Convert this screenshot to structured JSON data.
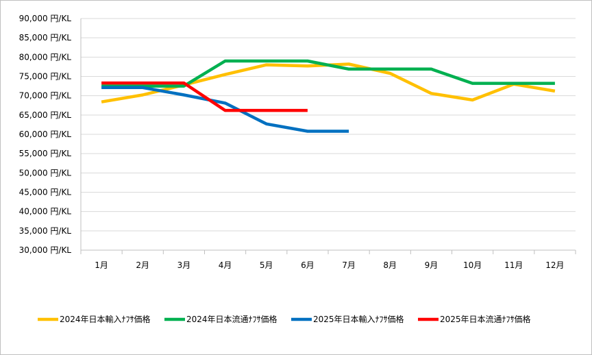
{
  "chart_data": {
    "type": "line",
    "title": "",
    "xlabel": "",
    "ylabel": "",
    "categories": [
      "1月",
      "2月",
      "3月",
      "4月",
      "5月",
      "6月",
      "7月",
      "8月",
      "9月",
      "10月",
      "11月",
      "12月"
    ],
    "ylim": [
      30000,
      90000
    ],
    "y_ticks": [
      {
        "value": 90000,
        "label": "90,000 円/KL"
      },
      {
        "value": 85000,
        "label": "85,000 円/KL"
      },
      {
        "value": 80000,
        "label": "80,000 円/KL"
      },
      {
        "value": 75000,
        "label": "75,000 円/KL"
      },
      {
        "value": 70000,
        "label": "70,000 円/KL"
      },
      {
        "value": 65000,
        "label": "65,000 円/KL"
      },
      {
        "value": 60000,
        "label": "60,000 円/KL"
      },
      {
        "value": 55000,
        "label": "55,000 円/KL"
      },
      {
        "value": 50000,
        "label": "50,000 円/KL"
      },
      {
        "value": 45000,
        "label": "45,000 円/KL"
      },
      {
        "value": 40000,
        "label": "40,000 円/KL"
      },
      {
        "value": 35000,
        "label": "35,000 円/KL"
      },
      {
        "value": 30000,
        "label": "30,000 円/KL"
      }
    ],
    "grid": true,
    "legend_position": "bottom",
    "series": [
      {
        "name": "2024年日本輸入ﾅﾌｻ価格",
        "color": "#FFC000",
        "values": [
          68400,
          70200,
          72800,
          75500,
          78000,
          77700,
          78200,
          75800,
          70600,
          68900,
          73000,
          71200
        ]
      },
      {
        "name": "2024年日本流通ﾅﾌｻ価格",
        "color": "#00B050",
        "values": [
          72500,
          72500,
          72500,
          79000,
          79000,
          79000,
          76900,
          76900,
          76900,
          73200,
          73200,
          73200
        ]
      },
      {
        "name": "2025年日本輸入ﾅﾌｻ価格",
        "color": "#0070C0",
        "values": [
          72100,
          72100,
          70200,
          68100,
          62700,
          60800,
          60800,
          null,
          null,
          null,
          null,
          null
        ]
      },
      {
        "name": "2025年日本流通ﾅﾌｻ価格",
        "color": "#FF0000",
        "values": [
          73300,
          73300,
          73300,
          66200,
          66200,
          66200,
          null,
          null,
          null,
          null,
          null,
          null
        ]
      }
    ]
  }
}
